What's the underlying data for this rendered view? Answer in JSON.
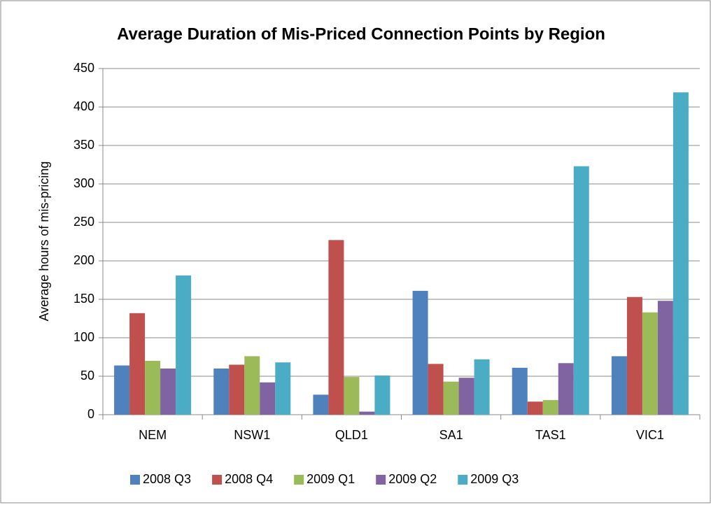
{
  "chart_data": {
    "type": "bar",
    "title": "Average Duration of Mis-Priced Connection Points by Region",
    "y_label": "Average hours of mis-pricing",
    "categories": [
      "NEM",
      "NSW1",
      "QLD1",
      "SA1",
      "TAS1",
      "VIC1"
    ],
    "series": [
      {
        "name": "2008 Q3",
        "color": "#4f81bd",
        "values": [
          64,
          60,
          26,
          161,
          61,
          76
        ]
      },
      {
        "name": "2008 Q4",
        "color": "#c0504d",
        "values": [
          132,
          65,
          227,
          66,
          17,
          153
        ]
      },
      {
        "name": "2009 Q1",
        "color": "#9bbb59",
        "values": [
          70,
          76,
          49,
          43,
          19,
          133
        ]
      },
      {
        "name": "2009 Q2",
        "color": "#8064a2",
        "values": [
          60,
          42,
          4,
          48,
          67,
          148
        ]
      },
      {
        "name": "2009 Q3",
        "color": "#4bacc6",
        "values": [
          181,
          68,
          51,
          72,
          323,
          419
        ]
      }
    ],
    "ylim": [
      0,
      450
    ],
    "yticks": [
      0,
      50,
      100,
      150,
      200,
      250,
      300,
      350,
      400,
      450
    ],
    "grid": true,
    "legend": "bottom"
  }
}
